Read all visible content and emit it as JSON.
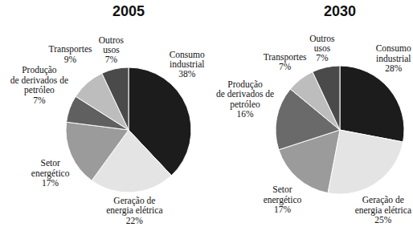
{
  "chart_data": [
    {
      "type": "pie",
      "title": "2005",
      "categories": [
        "Consumo\nindustrial",
        "Geração de\nenergia elétrica",
        "Setor\nenergético",
        "Produção\nde derivados de\npetróleo",
        "Transportes",
        "Outros\nusos"
      ],
      "values": [
        38,
        22,
        17,
        7,
        9,
        7
      ],
      "value_labels": [
        "38%",
        "22%",
        "17%",
        "7%",
        "9%",
        "7%"
      ],
      "colors": [
        "#1c1c1c",
        "#e4e4e4",
        "#9b9b9b",
        "#606060",
        "#bdbdbd",
        "#4a4a4a"
      ],
      "data_labels": true
    },
    {
      "type": "pie",
      "title": "2030",
      "categories": [
        "Consumo\nindustrial",
        "Geração de\nenergia elétrica",
        "Setor\nenergético",
        "Produção\nde derivados de\npetróleo",
        "Transportes",
        "Outros\nusos"
      ],
      "values": [
        28,
        25,
        17,
        16,
        7,
        7
      ],
      "value_labels": [
        "28%",
        "25%",
        "17%",
        "16%",
        "7%",
        "7%"
      ],
      "colors": [
        "#1c1c1c",
        "#e4e4e4",
        "#9b9b9b",
        "#6a6a6a",
        "#bdbdbd",
        "#4a4a4a"
      ],
      "data_labels": true
    }
  ]
}
